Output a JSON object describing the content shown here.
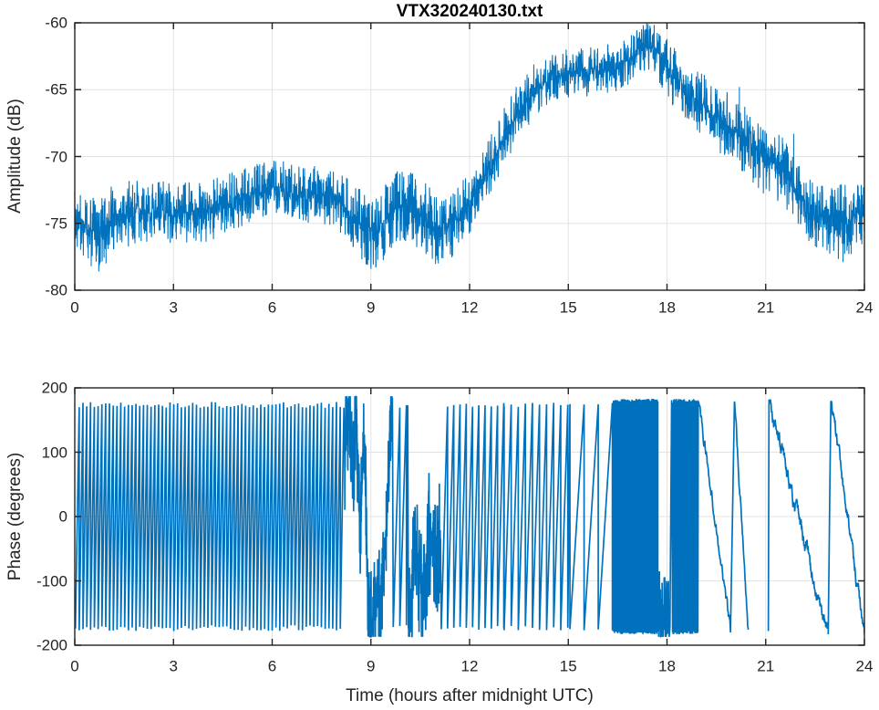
{
  "figure": {
    "line_color": "#0072BD",
    "axis_color": "#222222",
    "grid_color": "#e3e3e3",
    "background": "#ffffff",
    "text_color": "#242424"
  },
  "chart_data": [
    {
      "type": "line",
      "title": "VTX320240130.txt",
      "xlabel": "",
      "ylabel": "Amplitude (dB)",
      "xlim": [
        0,
        24
      ],
      "ylim": [
        -80,
        -60
      ],
      "xticks": [
        0,
        3,
        6,
        9,
        12,
        15,
        18,
        21,
        24
      ],
      "yticks": [
        -80,
        -75,
        -70,
        -65,
        -60
      ],
      "grid": true,
      "legend": null,
      "series": [
        {
          "name": "amplitude",
          "style": "noisy-band",
          "mean_keypoints": [
            [
              0,
              -74.6
            ],
            [
              0.35,
              -75.3
            ],
            [
              0.7,
              -75.7
            ],
            [
              1.1,
              -74.9
            ],
            [
              1.6,
              -74.3
            ],
            [
              2.2,
              -74.1
            ],
            [
              3.0,
              -74.2
            ],
            [
              4.0,
              -74.0
            ],
            [
              5.0,
              -73.3
            ],
            [
              5.8,
              -72.5
            ],
            [
              6.3,
              -72.5
            ],
            [
              7.0,
              -72.9
            ],
            [
              7.6,
              -72.9
            ],
            [
              8.1,
              -73.5
            ],
            [
              8.6,
              -74.8
            ],
            [
              9.0,
              -75.8
            ],
            [
              9.4,
              -75.1
            ],
            [
              9.8,
              -73.7
            ],
            [
              10.2,
              -73.9
            ],
            [
              10.6,
              -74.4
            ],
            [
              11.0,
              -75.6
            ],
            [
              11.4,
              -75.3
            ],
            [
              11.8,
              -74.1
            ],
            [
              12.2,
              -72.7
            ],
            [
              12.6,
              -70.9
            ],
            [
              13.0,
              -68.8
            ],
            [
              13.5,
              -66.5
            ],
            [
              14.0,
              -64.9
            ],
            [
              14.5,
              -64.0
            ],
            [
              15.0,
              -63.8
            ],
            [
              15.5,
              -63.7
            ],
            [
              16.0,
              -63.6
            ],
            [
              16.5,
              -63.3
            ],
            [
              17.0,
              -62.6
            ],
            [
              17.4,
              -61.7
            ],
            [
              17.6,
              -61.9
            ],
            [
              17.8,
              -62.6
            ],
            [
              18.0,
              -63.4
            ],
            [
              18.4,
              -64.7
            ],
            [
              19.0,
              -66.0
            ],
            [
              19.5,
              -67.1
            ],
            [
              20.0,
              -67.9
            ],
            [
              20.5,
              -69.0
            ],
            [
              21.0,
              -70.3
            ],
            [
              21.5,
              -71.0
            ],
            [
              22.0,
              -72.9
            ],
            [
              22.4,
              -74.2
            ],
            [
              22.8,
              -74.6
            ],
            [
              23.2,
              -75.0
            ],
            [
              23.5,
              -74.8
            ],
            [
              23.8,
              -74.4
            ],
            [
              24,
              -74.2
            ]
          ],
          "spread_keypoints": [
            [
              0,
              1.5
            ],
            [
              1,
              1.6
            ],
            [
              2,
              1.4
            ],
            [
              4,
              1.4
            ],
            [
              6,
              1.3
            ],
            [
              8,
              1.3
            ],
            [
              9,
              1.6
            ],
            [
              10,
              1.8
            ],
            [
              11,
              1.5
            ],
            [
              12,
              1.4
            ],
            [
              13,
              1.3
            ],
            [
              14,
              1.2
            ],
            [
              15,
              1.1
            ],
            [
              16,
              1.1
            ],
            [
              17,
              1.1
            ],
            [
              17.5,
              1.1
            ],
            [
              18,
              1.3
            ],
            [
              19,
              1.4
            ],
            [
              20,
              1.5
            ],
            [
              20.6,
              1.7
            ],
            [
              21.2,
              1.5
            ],
            [
              22,
              1.4
            ],
            [
              22.8,
              1.5
            ],
            [
              23.3,
              1.7
            ],
            [
              24,
              1.3
            ]
          ],
          "spikes": [
            [
              0.5,
              -78.2
            ],
            [
              0.73,
              -78.6
            ],
            [
              0.95,
              -78.0
            ],
            [
              8.9,
              -78.1
            ],
            [
              9.15,
              -78.3
            ],
            [
              9.65,
              -71.9
            ],
            [
              9.8,
              -71.4
            ],
            [
              10.2,
              -71.3
            ],
            [
              10.35,
              -71.7
            ],
            [
              11.05,
              -78.0
            ],
            [
              11.15,
              -77.6
            ],
            [
              17.42,
              -60.6
            ],
            [
              17.5,
              -60.4
            ],
            [
              17.58,
              -60.8
            ],
            [
              20.2,
              -64.8
            ],
            [
              21.85,
              -68.3
            ],
            [
              22.55,
              -76.8
            ],
            [
              23.35,
              -77.9
            ],
            [
              23.6,
              -77.3
            ],
            [
              23.97,
              -72.3
            ]
          ]
        }
      ]
    },
    {
      "type": "line",
      "title": "",
      "xlabel": "Time (hours after midnight UTC)",
      "ylabel": "Phase (degrees)",
      "xlim": [
        0,
        24
      ],
      "ylim": [
        -200,
        200
      ],
      "xticks": [
        0,
        3,
        6,
        9,
        12,
        15,
        18,
        21,
        24
      ],
      "yticks": [
        -200,
        -100,
        0,
        100,
        200
      ],
      "grid": true,
      "legend": null,
      "series": [
        {
          "name": "phase-wrapped",
          "style": "phase-segments",
          "segments": [
            {
              "kind": "wrap",
              "t0": 0.02,
              "t1": 8.18,
              "period": 0.115,
              "dir": 1,
              "amp": 178,
              "edgeNoise": 9
            },
            {
              "kind": "noisy",
              "t0": 8.2,
              "t1": 9.02,
              "noise": 38,
              "keypoints": [
                [
                  8.2,
                  90
                ],
                [
                  8.32,
                  172
                ],
                [
                  8.45,
                  60
                ],
                [
                  8.56,
                  158
                ],
                [
                  8.68,
                  -40
                ],
                [
                  8.79,
                  125
                ],
                [
                  8.9,
                  -95
                ],
                [
                  9.02,
                  -172
                ]
              ]
            },
            {
              "kind": "noisy",
              "t0": 9.05,
              "t1": 9.66,
              "noise": 30,
              "keypoints": [
                [
                  9.05,
                  -172
                ],
                [
                  9.2,
                  -95
                ],
                [
                  9.3,
                  -152
                ],
                [
                  9.45,
                  -30
                ],
                [
                  9.56,
                  85
                ],
                [
                  9.66,
                  172
                ]
              ]
            },
            {
              "kind": "wrap",
              "t0": 9.68,
              "t1": 10.12,
              "period": 0.2,
              "dir": 1,
              "amp": 176,
              "edgeNoise": 7
            },
            {
              "kind": "noisy",
              "t0": 10.14,
              "t1": 11.12,
              "noise": 42,
              "keypoints": [
                [
                  10.14,
                  -150
                ],
                [
                  10.38,
                  -45
                ],
                [
                  10.58,
                  -118
                ],
                [
                  10.78,
                  -25
                ],
                [
                  10.98,
                  -72
                ],
                [
                  11.12,
                  -28
                ]
              ]
            },
            {
              "kind": "wrap",
              "t0": 11.14,
              "t1": 13.05,
              "period": 0.19,
              "dir": 1,
              "amp": 177,
              "edgeNoise": 7
            },
            {
              "kind": "wrap",
              "t0": 13.05,
              "t1": 15.05,
              "period": 0.215,
              "dir": 1,
              "amp": 177,
              "edgeNoise": 7
            },
            {
              "kind": "wrap",
              "t0": 15.05,
              "t1": 16.36,
              "period": 0.43,
              "dir": 1,
              "amp": 178,
              "edgeNoise": 6
            },
            {
              "kind": "wrap",
              "t0": 16.36,
              "t1": 17.72,
              "period": 0.016,
              "dir": 1,
              "amp": 183,
              "edgeNoise": 6
            },
            {
              "kind": "noisy",
              "t0": 17.72,
              "t1": 18.07,
              "noise": 24,
              "keypoints": [
                [
                  17.72,
                  -132
                ],
                [
                  17.82,
                  -156
                ],
                [
                  17.95,
                  -142
                ],
                [
                  18.07,
                  -152
                ]
              ]
            },
            {
              "kind": "line",
              "t0": 18.09,
              "t1": 18.14,
              "y0": -176,
              "y1": 178,
              "noise": 4
            },
            {
              "kind": "wrap",
              "t0": 18.17,
              "t1": 18.95,
              "period": 0.016,
              "dir": 1,
              "amp": 183,
              "edgeNoise": 6
            },
            {
              "kind": "line",
              "t0": 18.97,
              "t1": 19.93,
              "y0": 179,
              "y1": -179,
              "noise": 7
            },
            {
              "kind": "line",
              "t0": 20.05,
              "t1": 20.47,
              "y0": 179,
              "y1": -179,
              "noise": 6
            },
            {
              "kind": "line",
              "t0": 21.08,
              "t1": 21.1,
              "y0": -179,
              "y1": 178,
              "noise": 3,
              "gap": true
            },
            {
              "kind": "line",
              "t0": 21.1,
              "t1": 22.87,
              "y0": 178,
              "y1": -181,
              "noise": 9
            },
            {
              "kind": "line",
              "t0": 22.9,
              "t1": 22.98,
              "y0": -180,
              "y1": 179,
              "noise": 3,
              "gap": true
            },
            {
              "kind": "line",
              "t0": 23.0,
              "t1": 24.0,
              "y0": 179,
              "y1": -183,
              "noise": 8
            }
          ]
        }
      ]
    }
  ]
}
